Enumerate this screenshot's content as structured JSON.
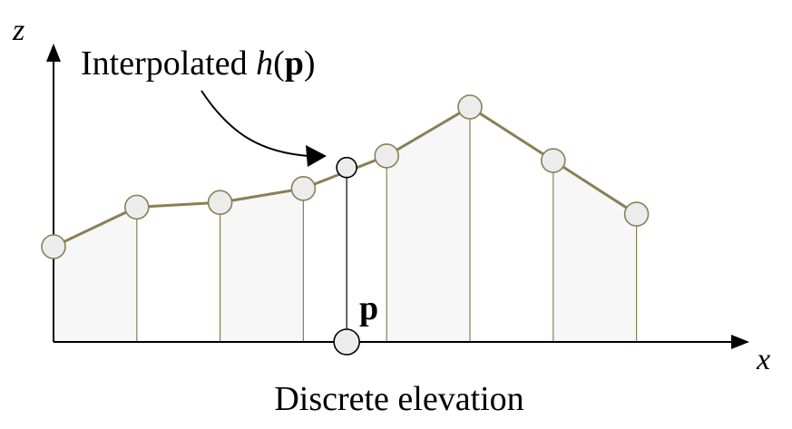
{
  "labels": {
    "z_axis": "z",
    "x_axis": "x",
    "callout_prefix": "Interpolated ",
    "callout_func": "h",
    "callout_open": "(",
    "callout_arg": "p",
    "callout_close": ")",
    "point_label": "p",
    "caption": "Discrete elevation"
  },
  "colors": {
    "profile_line": "#8a7f55",
    "fill": "#f7f7f7",
    "node_fill": "#ececec",
    "node_stroke": "#8a7f55",
    "axis": "#000000"
  },
  "chart_data": {
    "type": "line",
    "description_points_relative": true,
    "samples": [
      {
        "x": 0,
        "z": 0.4
      },
      {
        "x": 1,
        "z": 0.57
      },
      {
        "x": 2,
        "z": 0.59
      },
      {
        "x": 3,
        "z": 0.65
      },
      {
        "x": 4,
        "z": 0.79
      },
      {
        "x": 5,
        "z": 1.0
      },
      {
        "x": 6,
        "z": 0.77
      },
      {
        "x": 7,
        "z": 0.54
      }
    ],
    "interpolated_point": {
      "x": 3.52,
      "z": 0.74
    }
  }
}
